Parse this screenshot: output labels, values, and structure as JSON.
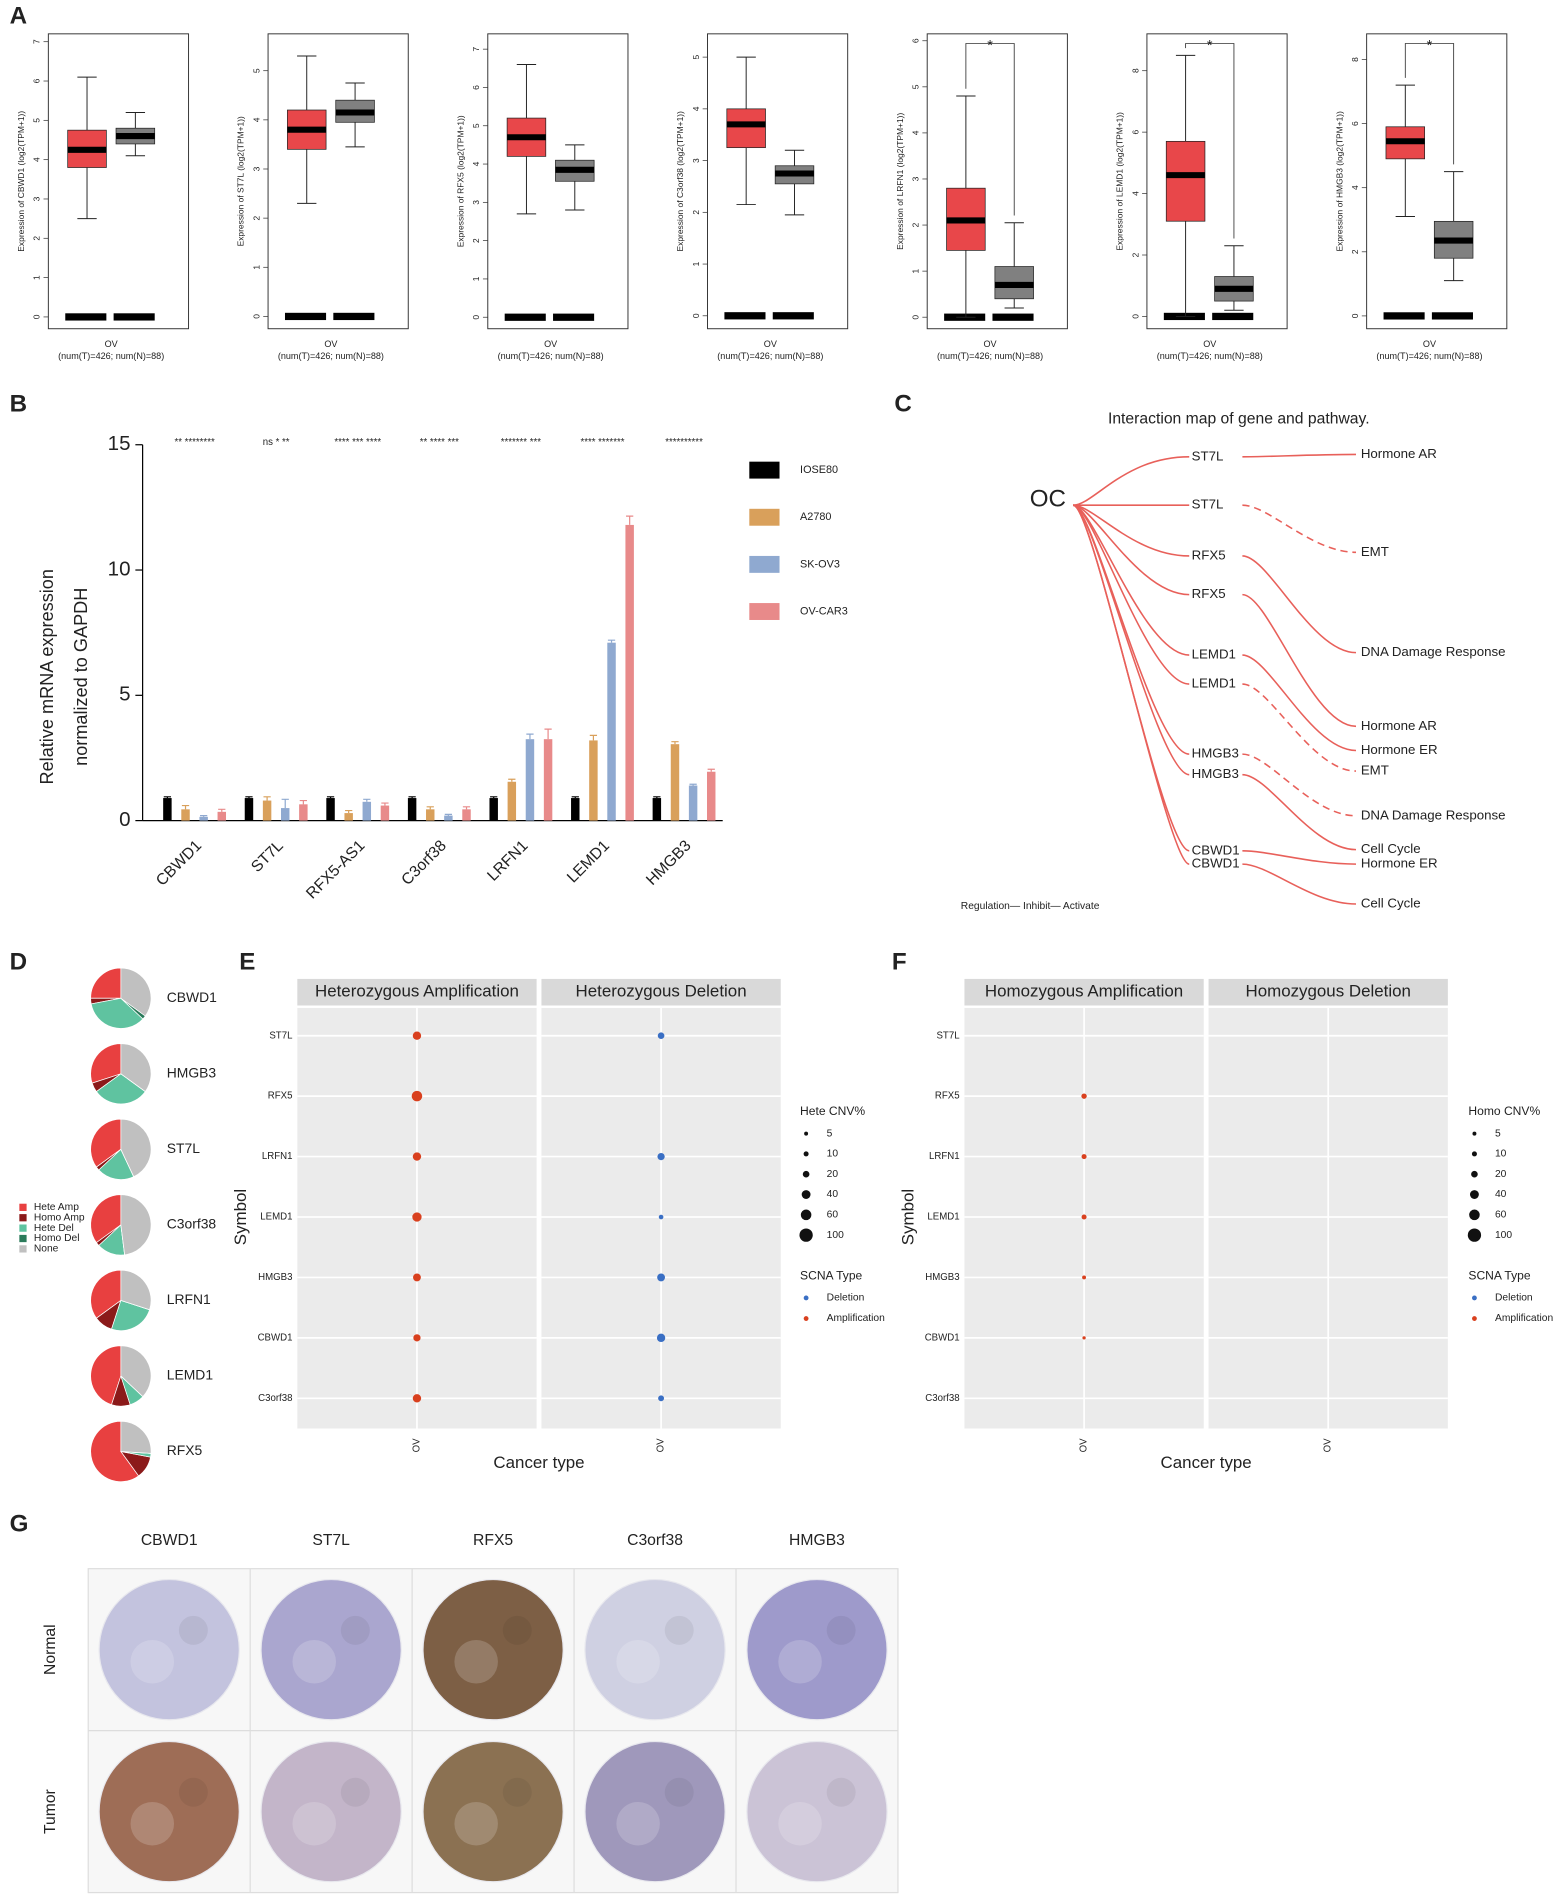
{
  "panel_labels": [
    "A",
    "B",
    "C",
    "D",
    "E",
    "F",
    "G"
  ],
  "chart_data": [
    {
      "type": "box",
      "ylabel": "Expression of CBWD1 (log2(TPM+1))",
      "ylim": [
        -0.3,
        7.2
      ],
      "yticks": [
        0,
        1,
        2,
        3,
        4,
        5,
        6,
        7
      ],
      "xlabel": "OV",
      "note": "(num(T)=426; num(N)=88)",
      "boxes": [
        {
          "color": "#e8474a",
          "whislo": 2.5,
          "q1": 3.8,
          "med": 4.25,
          "q3": 4.75,
          "whishi": 6.1
        },
        {
          "color": "#808080",
          "whislo": 4.1,
          "q1": 4.4,
          "med": 4.6,
          "q3": 4.8,
          "whishi": 5.2
        }
      ]
    },
    {
      "type": "box",
      "ylabel": "Expression of ST7L (log2(TPM+1))",
      "ylim": [
        -0.25,
        5.75
      ],
      "yticks": [
        0,
        1,
        2,
        3,
        4,
        5
      ],
      "xlabel": "OV",
      "note": "(num(T)=426; num(N)=88)",
      "boxes": [
        {
          "color": "#e8474a",
          "whislo": 2.3,
          "q1": 3.4,
          "med": 3.8,
          "q3": 4.2,
          "whishi": 5.3
        },
        {
          "color": "#808080",
          "whislo": 3.45,
          "q1": 3.95,
          "med": 4.15,
          "q3": 4.4,
          "whishi": 4.75
        }
      ]
    },
    {
      "type": "box",
      "ylabel": "Expression of RFX5 (log2(TPM+1))",
      "ylim": [
        -0.3,
        7.4
      ],
      "yticks": [
        0,
        1,
        2,
        3,
        4,
        5,
        6,
        7
      ],
      "xlabel": "OV",
      "note": "(num(T)=426; num(N)=88)",
      "boxes": [
        {
          "color": "#e8474a",
          "whislo": 2.7,
          "q1": 4.2,
          "med": 4.7,
          "q3": 5.2,
          "whishi": 6.6
        },
        {
          "color": "#808080",
          "whislo": 2.8,
          "q1": 3.55,
          "med": 3.85,
          "q3": 4.1,
          "whishi": 4.5
        }
      ]
    },
    {
      "type": "box",
      "ylabel": "Expression of C3orf38 (log2(TPM+1))",
      "ylim": [
        -0.25,
        5.45
      ],
      "yticks": [
        0,
        1,
        2,
        3,
        4,
        5
      ],
      "xlabel": "OV",
      "note": "(num(T)=426; num(N)=88)",
      "boxes": [
        {
          "color": "#e8474a",
          "whislo": 2.15,
          "q1": 3.25,
          "med": 3.7,
          "q3": 4.0,
          "whishi": 5.0
        },
        {
          "color": "#808080",
          "whislo": 1.95,
          "q1": 2.55,
          "med": 2.75,
          "q3": 2.9,
          "whishi": 3.2
        }
      ]
    },
    {
      "type": "box",
      "ylabel": "Expression of LRFN1 (log2(TPM+1))",
      "ylim": [
        -0.25,
        6.15
      ],
      "yticks": [
        0,
        1,
        2,
        3,
        4,
        5,
        6
      ],
      "xlabel": "OV",
      "note": "(num(T)=426; num(N)=88)",
      "significance": "*",
      "boxes": [
        {
          "color": "#e8474a",
          "whislo": 0,
          "q1": 1.45,
          "med": 2.1,
          "q3": 2.8,
          "whishi": 4.8
        },
        {
          "color": "#808080",
          "whislo": 0.2,
          "q1": 0.4,
          "med": 0.7,
          "q3": 1.1,
          "whishi": 2.05
        }
      ]
    },
    {
      "type": "box",
      "ylabel": "Expression of LEMD1 (log2(TPM+1))",
      "ylim": [
        -0.4,
        9.2
      ],
      "yticks": [
        0,
        2,
        4,
        6,
        8
      ],
      "xlabel": "OV",
      "note": "(num(T)=426; num(N)=88)",
      "significance": "*",
      "boxes": [
        {
          "color": "#e8474a",
          "whislo": 0,
          "q1": 3.1,
          "med": 4.6,
          "q3": 5.7,
          "whishi": 8.5
        },
        {
          "color": "#808080",
          "whislo": 0.2,
          "q1": 0.5,
          "med": 0.9,
          "q3": 1.3,
          "whishi": 2.3
        }
      ]
    },
    {
      "type": "box",
      "ylabel": "Expression of HMGB3 (log2(TPM+1))",
      "ylim": [
        -0.4,
        8.8
      ],
      "yticks": [
        0,
        2,
        4,
        6,
        8
      ],
      "xlabel": "OV",
      "note": "(num(T)=426; num(N)=88)",
      "significance": "*",
      "boxes": [
        {
          "color": "#e8474a",
          "whislo": 3.1,
          "q1": 4.9,
          "med": 5.45,
          "q3": 5.9,
          "whishi": 7.2
        },
        {
          "color": "#808080",
          "whislo": 1.1,
          "q1": 1.8,
          "med": 2.35,
          "q3": 2.95,
          "whishi": 4.5
        }
      ]
    },
    {
      "type": "bar",
      "ylabel": [
        "Relative mRNA expression",
        "normalized to GAPDH"
      ],
      "ylim": [
        0,
        15
      ],
      "yticks": [
        0,
        5,
        10,
        15
      ],
      "categories": [
        "CBWD1",
        "ST7L",
        "RFX5-AS1",
        "C3orf38",
        "LRFN1",
        "LEMD1",
        "HMGB3"
      ],
      "significance": [
        "** ********",
        "ns * **",
        "**** *** ****",
        "** **** ***",
        "******* ***",
        "**** *******",
        "**********"
      ],
      "series": [
        {
          "name": "IOSE80",
          "color": "#000000",
          "values": [
            0.9,
            0.9,
            0.9,
            0.9,
            0.9,
            0.9,
            0.9
          ],
          "errors": [
            0.05,
            0.05,
            0.05,
            0.05,
            0.05,
            0.05,
            0.05
          ]
        },
        {
          "name": "A2780",
          "color": "#d9a05b",
          "values": [
            0.45,
            0.8,
            0.3,
            0.45,
            1.55,
            3.2,
            3.05
          ],
          "errors": [
            0.15,
            0.15,
            0.1,
            0.1,
            0.1,
            0.2,
            0.1
          ]
        },
        {
          "name": "SK-OV3",
          "color": "#8fa9d0",
          "values": [
            0.15,
            0.5,
            0.75,
            0.2,
            3.25,
            7.1,
            1.4
          ],
          "errors": [
            0.05,
            0.35,
            0.1,
            0.05,
            0.2,
            0.1,
            0.05
          ]
        },
        {
          "name": "OV-CAR3",
          "color": "#e88a8a",
          "values": [
            0.35,
            0.65,
            0.6,
            0.45,
            3.25,
            11.8,
            1.95
          ],
          "errors": [
            0.1,
            0.15,
            0.1,
            0.1,
            0.4,
            0.35,
            0.1
          ]
        }
      ]
    },
    {
      "type": "pie",
      "categories": [
        "Hete Amp",
        "Homo Amp",
        "Hete Del",
        "Homo Del",
        "None"
      ],
      "colors": [
        "#e84040",
        "#8b1a1a",
        "#5fc3a0",
        "#2a7a5a",
        "#c0c0c0"
      ],
      "series": [
        {
          "name": "CBWD1",
          "values": [
            25,
            3,
            35,
            2,
            35
          ]
        },
        {
          "name": "HMGB3",
          "values": [
            30,
            5,
            30,
            0,
            35
          ]
        },
        {
          "name": "ST7L",
          "values": [
            35,
            2,
            20,
            0,
            43
          ]
        },
        {
          "name": "C3orf38",
          "values": [
            35,
            2,
            15,
            0,
            48
          ]
        },
        {
          "name": "LRFN1",
          "values": [
            35,
            10,
            25,
            0,
            30
          ]
        },
        {
          "name": "LEMD1",
          "values": [
            45,
            10,
            8,
            0,
            37
          ]
        },
        {
          "name": "RFX5",
          "values": [
            60,
            12,
            2,
            0,
            26
          ]
        }
      ]
    },
    {
      "type": "dot",
      "facets": [
        "Heterozygous Amplification",
        "Heterozygous Deletion"
      ],
      "categories": [
        "ST7L",
        "RFX5",
        "LRFN1",
        "LEMD1",
        "HMGB3",
        "CBWD1",
        "C3orf38"
      ],
      "x_category": "OV",
      "xlabel": "Cancer type",
      "ylabel": "Symbol",
      "size_title": "Hete CNV%",
      "size_legend": [
        5,
        10,
        20,
        40,
        60,
        100
      ],
      "color_title": "SCNA Type",
      "series": [
        {
          "name": "Amplification",
          "color": "#d9401e",
          "values": [
            35,
            60,
            35,
            45,
            30,
            25,
            35
          ]
        },
        {
          "name": "Deletion",
          "color": "#3a6fc4",
          "values": [
            20,
            null,
            25,
            8,
            30,
            35,
            15
          ]
        }
      ]
    },
    {
      "type": "dot",
      "facets": [
        "Homozygous Amplification",
        "Homozygous Deletion"
      ],
      "categories": [
        "ST7L",
        "RFX5",
        "LRFN1",
        "LEMD1",
        "HMGB3",
        "CBWD1",
        "C3orf38"
      ],
      "x_category": "OV",
      "xlabel": "Cancer type",
      "ylabel": "Symbol",
      "size_title": "Homo CNV%",
      "size_legend": [
        5,
        10,
        20,
        40,
        60,
        100
      ],
      "color_title": "SCNA Type",
      "series": [
        {
          "name": "Amplification",
          "color": "#d9401e",
          "values": [
            null,
            12,
            10,
            10,
            5,
            3,
            null
          ]
        },
        {
          "name": "Deletion",
          "color": "#3a6fc4",
          "values": [
            null,
            null,
            null,
            null,
            null,
            null,
            null
          ]
        }
      ]
    }
  ],
  "diagram": {
    "title": "Interaction map of gene and pathway.",
    "root": "OC",
    "genes": [
      "ST7L",
      "ST7L",
      "RFX5",
      "RFX5",
      "LEMD1",
      "LEMD1",
      "HMGB3",
      "HMGB3",
      "CBWD1",
      "CBWD1"
    ],
    "pathways": [
      "Hormone AR",
      "EMT",
      "DNA Damage Response",
      "Hormone AR",
      "Hormone ER",
      "EMT",
      "DNA Damage Response",
      "Cell Cycle",
      "Hormone ER",
      "Cell Cycle"
    ],
    "legend": "Regulation— Inhibit— Activate"
  },
  "ihc": {
    "genes": [
      "CBWD1",
      "ST7L",
      "RFX5",
      "C3orf38",
      "HMGB3"
    ],
    "rows": [
      "Normal",
      "Tumor"
    ]
  }
}
